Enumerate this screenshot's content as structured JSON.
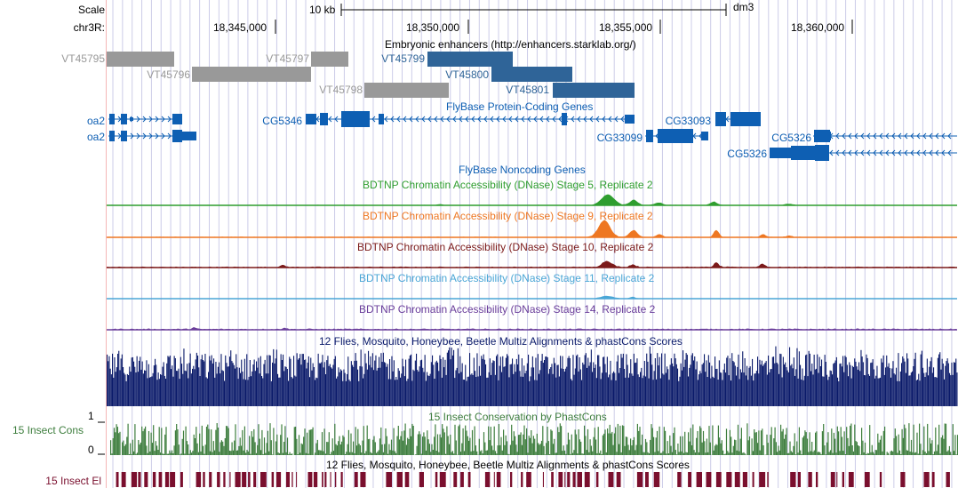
{
  "header": {
    "scale_label": "Scale",
    "chrom_label": "chr3R:",
    "scalebar_label": "10 kb",
    "assembly": "dm3",
    "ticks": [
      "18,345,000",
      "18,350,000",
      "18,355,000",
      "18,360,000"
    ]
  },
  "colors": {
    "enhancer_gray": "#999999",
    "enhancer_blue": "#2f6498",
    "gene_blue": "#0e5fb3",
    "stage5": "#2f9e2f",
    "stage9": "#ee7722",
    "stage10": "#7b1a1a",
    "stage11": "#4aa6d6",
    "stage14": "#6a3d9a",
    "multiz": "#0a1a6a",
    "cons": "#3e7e3e",
    "elements": "#7a0f2e",
    "grid": "#cccce8"
  },
  "tracks": {
    "enhancers": {
      "title": "Embryonic enhancers (http://enhancers.starklab.org/)",
      "items": [
        {
          "name": "VT45795",
          "color": "gray"
        },
        {
          "name": "VT45796",
          "color": "gray"
        },
        {
          "name": "VT45797",
          "color": "gray"
        },
        {
          "name": "VT45798",
          "color": "gray"
        },
        {
          "name": "VT45799",
          "color": "blue"
        },
        {
          "name": "VT45800",
          "color": "blue"
        },
        {
          "name": "VT45801",
          "color": "blue"
        }
      ]
    },
    "coding_genes": {
      "title": "FlyBase Protein-Coding Genes",
      "genes": [
        "oa2",
        "oa2",
        "CG5346",
        "CG33093",
        "CG33099",
        "CG5326",
        "CG5326"
      ]
    },
    "noncoding_genes": {
      "title": "FlyBase Noncoding Genes"
    },
    "dnase": [
      {
        "title": "BDTNP Chromatin Accessibility (DNase) Stage 5, Replicate 2",
        "color_key": "stage5"
      },
      {
        "title": "BDTNP Chromatin Accessibility (DNase) Stage 9, Replicate 2",
        "color_key": "stage9"
      },
      {
        "title": "BDTNP Chromatin Accessibility (DNase) Stage 10, Replicate 2",
        "color_key": "stage10"
      },
      {
        "title": "BDTNP Chromatin Accessibility (DNase) Stage 11, Replicate 2",
        "color_key": "stage11"
      },
      {
        "title": "BDTNP Chromatin Accessibility (DNase) Stage 14, Replicate 2",
        "color_key": "stage14"
      }
    ],
    "multiz": {
      "title": "12 Flies, Mosquito, Honeybee, Beetle Multiz Alignments & phastCons Scores"
    },
    "cons": {
      "title": "15 Insect Conservation by PhastCons",
      "side_label": "15 Insect Cons",
      "y_max": "1",
      "y_min": "0"
    },
    "elements": {
      "title": "12 Flies, Mosquito, Honeybee, Beetle Multiz Alignments & phastCons Scores",
      "side_label": "15 Insect El"
    }
  }
}
